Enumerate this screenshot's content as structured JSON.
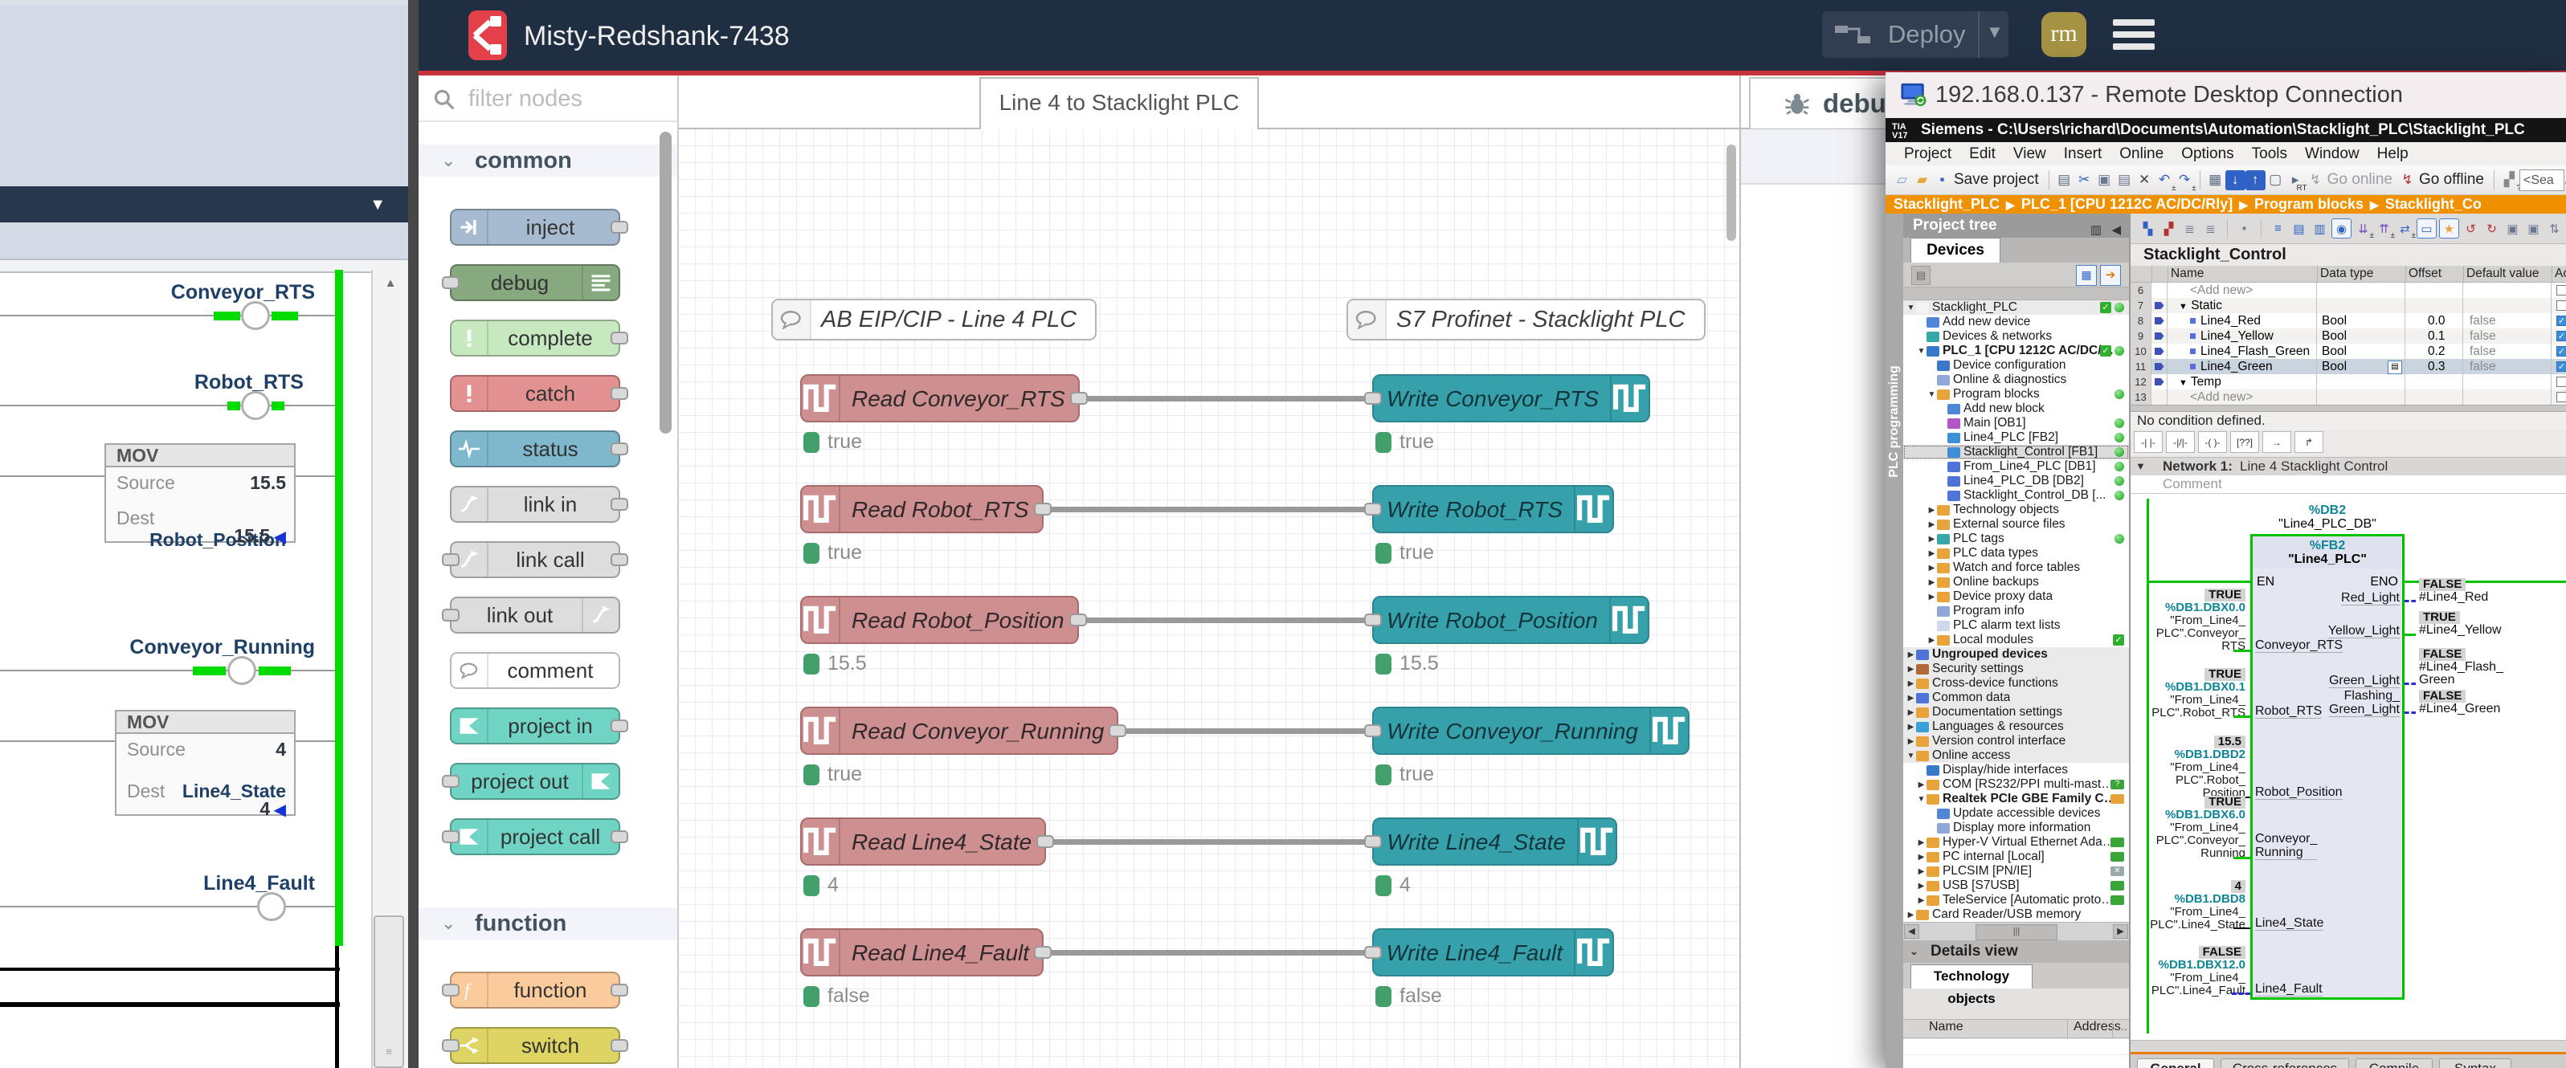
{
  "ladder_app": {
    "window_caret_icon": "▼",
    "rungs": [
      {
        "tag": "Conveyor_RTS",
        "energized": true
      },
      {
        "tag": "Robot_RTS",
        "energized": true
      },
      {
        "tag": "Conveyor_Running",
        "energized": true
      },
      {
        "tag": "Line4_Fault",
        "energized": false
      }
    ],
    "mov_blocks": [
      {
        "title": "MOV",
        "source_label": "Source",
        "source_value": "15.5",
        "dest_label": "Dest",
        "dest_tag": "Robot_Position",
        "dest_value": "15.5"
      },
      {
        "title": "MOV",
        "source_label": "Source",
        "source_value": "4",
        "dest_label": "Dest",
        "dest_tag": "Line4_State",
        "dest_value": "4"
      }
    ]
  },
  "node_red": {
    "title": "Misty-Redshank-7438",
    "deploy_label": "Deploy",
    "avatar_initials": "rm",
    "tab_label": "Line 4 to Stacklight PLC",
    "sidebar_tab": "debug",
    "palette": {
      "filter_placeholder": "filter nodes",
      "sections": [
        {
          "label": "common",
          "nodes": [
            {
              "label": "inject",
              "color": "#a6bbcf",
              "icon": "inject-icon",
              "icon_side": "left",
              "ports": "out"
            },
            {
              "label": "debug",
              "color": "#87a980",
              "icon": "debug-icon",
              "icon_side": "right",
              "ports": "in"
            },
            {
              "label": "complete",
              "color": "#c7e9c0",
              "icon": "exclaim-icon",
              "icon_side": "left",
              "ports": "out"
            },
            {
              "label": "catch",
              "color": "#e49191",
              "icon": "exclaim-icon",
              "icon_side": "left",
              "ports": "out"
            },
            {
              "label": "status",
              "color": "#7fb7cc",
              "icon": "status-icon",
              "icon_side": "left",
              "ports": "out"
            },
            {
              "label": "link in",
              "color": "#dddddd",
              "icon": "link-icon",
              "icon_side": "left",
              "ports": "out"
            },
            {
              "label": "link call",
              "color": "#dddddd",
              "icon": "link-icon",
              "icon_side": "left",
              "ports": "both"
            },
            {
              "label": "link out",
              "color": "#dddddd",
              "icon": "link-icon",
              "icon_side": "right",
              "ports": "in"
            },
            {
              "label": "comment",
              "color": "#ffffff",
              "icon": "comment-icon",
              "icon_side": "left",
              "ports": "none"
            },
            {
              "label": "project in",
              "color": "#6fd4c4",
              "icon": "project-icon",
              "icon_side": "left",
              "ports": "out"
            },
            {
              "label": "project out",
              "color": "#6fd4c4",
              "icon": "project-icon",
              "icon_side": "right",
              "ports": "in"
            },
            {
              "label": "project call",
              "color": "#6fd4c4",
              "icon": "project-icon",
              "icon_side": "left",
              "ports": "both"
            }
          ]
        },
        {
          "label": "function",
          "nodes": [
            {
              "label": "function",
              "color": "#fbcb9c",
              "icon": "function-icon",
              "icon_side": "left",
              "ports": "both"
            },
            {
              "label": "switch",
              "color": "#ddd463",
              "icon": "switch-icon",
              "icon_side": "left",
              "ports": "both"
            },
            {
              "label": "",
              "color": "#ddd463",
              "icon": "",
              "icon_side": "left",
              "ports": "none",
              "partial": true
            }
          ]
        }
      ]
    },
    "comments": [
      "AB EIP/CIP - Line 4 PLC",
      "S7 Profinet - Stacklight PLC"
    ],
    "flows": [
      {
        "read": "Read Conveyor_RTS",
        "write": "Write Conveyor_RTS",
        "read_status": "true",
        "write_status": "true"
      },
      {
        "read": "Read Robot_RTS",
        "write": "Write Robot_RTS",
        "read_status": "true",
        "write_status": "true"
      },
      {
        "read": "Read Robot_Position",
        "write": "Write Robot_Position",
        "read_status": "15.5",
        "write_status": "15.5"
      },
      {
        "read": "Read Conveyor_Running",
        "write": "Write Conveyor_Running",
        "read_status": "true",
        "write_status": "true"
      },
      {
        "read": "Read Line4_State",
        "write": "Write Line4_State",
        "read_status": "4",
        "write_status": "4"
      },
      {
        "read": "Read Line4_Fault",
        "write": "Write Line4_Fault",
        "read_status": "false",
        "write_status": "false"
      }
    ]
  },
  "rdp": {
    "window_title": "192.168.0.137 - Remote Desktop Connection",
    "tia": {
      "logo_line1": "TIA",
      "logo_line2": "V17",
      "titlebar": "Siemens  -  C:\\Users\\richard\\Documents\\Automation\\Stacklight_PLC\\Stacklight_PLC",
      "menus": [
        "Project",
        "Edit",
        "View",
        "Insert",
        "Online",
        "Options",
        "Tools",
        "Window",
        "Help"
      ],
      "toolbar": [
        {
          "n": "new-project-icon",
          "g": "▱",
          "c": "#7a9fd4"
        },
        {
          "n": "open-project-icon",
          "g": "▰",
          "c": "#e2a93b"
        },
        {
          "n": "save-project-icon",
          "g": "▪",
          "c": "#2f62c4",
          "label": "Save project",
          "label_color": "#222"
        },
        {
          "n": "sep"
        },
        {
          "n": "print-icon",
          "g": "▤",
          "c": "#5d6a85"
        },
        {
          "n": "cut-icon",
          "g": "✂",
          "c": "#2f62c4"
        },
        {
          "n": "copy-icon",
          "g": "▣",
          "c": "#6b7690"
        },
        {
          "n": "paste-icon",
          "g": "▤",
          "c": "#6b7690"
        },
        {
          "n": "delete-icon",
          "g": "✕",
          "c": "#444444"
        },
        {
          "n": "undo-icon",
          "g": "↶",
          "c": "#2f62c4",
          "sub": "±"
        },
        {
          "n": "redo-icon",
          "g": "↷",
          "c": "#2f62c4",
          "sub": "±"
        },
        {
          "n": "sep"
        },
        {
          "n": "show-network-icon",
          "g": "▦",
          "c": "#5d6a85"
        },
        {
          "n": "download-to-device-icon",
          "g": "↓",
          "c": "#ffffff",
          "bg": "#2f62c4"
        },
        {
          "n": "upload-from-device-icon",
          "g": "↑",
          "c": "#ffffff",
          "bg": "#2f62c4"
        },
        {
          "n": "monitor-icon",
          "g": "▢",
          "c": "#5d6a85"
        },
        {
          "n": "start-rt-icon",
          "g": "▸",
          "c": "#5d6a85",
          "sub": "RT"
        },
        {
          "n": "go-online-icon",
          "g": "↯",
          "c": "#9aa0a8",
          "label": "Go online",
          "label_color": "#9aa0a8"
        },
        {
          "n": "go-offline-icon",
          "g": "↯",
          "c": "#b3342f",
          "label": "Go offline",
          "label_color": "#222"
        },
        {
          "n": "sep"
        },
        {
          "n": "accessible-devices-icon",
          "g": "▞",
          "c": "#888888",
          "sub": "?"
        },
        {
          "n": "start-cpu-icon",
          "g": "▶",
          "c": "#6b7690"
        },
        {
          "n": "stop-cpu-icon",
          "g": "■",
          "c": "#b3342f"
        },
        {
          "n": "cross-ref-icon",
          "g": "✗",
          "c": "#333333"
        },
        {
          "n": "h-split-icon",
          "g": "▬",
          "c": "#2f62c4"
        },
        {
          "n": "v-split-icon",
          "g": "▮",
          "c": "#2f62c4"
        }
      ],
      "toolbar_search": "<Sea",
      "breadcrumb": [
        "Stacklight_PLC",
        "PLC_1 [CPU 1212C AC/DC/Rly]",
        "Program blocks",
        "Stacklight_Co"
      ],
      "side_strip": "PLC programming",
      "project_tree": {
        "header": "Project tree",
        "tab": "Devices",
        "rows": [
          {
            "l": "Stacklight_PLC",
            "lv": 0,
            "e": 2,
            "ic": "project",
            "r": "cd",
            "sh": 1
          },
          {
            "l": "Add new device",
            "lv": 1,
            "ic": "add"
          },
          {
            "l": "Devices & networks",
            "lv": 1,
            "ic": "network"
          },
          {
            "l": "PLC_1 [CPU 1212C AC/DC/Rly]",
            "lv": 1,
            "e": 2,
            "ic": "plc",
            "r": "cd",
            "b": 1
          },
          {
            "l": "Device configuration",
            "lv": 2,
            "ic": "devconf"
          },
          {
            "l": "Online & diagnostics",
            "lv": 2,
            "ic": "diag"
          },
          {
            "l": "Program blocks",
            "lv": 2,
            "e": 2,
            "ic": "folder",
            "r": "d"
          },
          {
            "l": "Add new block",
            "lv": 3,
            "ic": "add"
          },
          {
            "l": "Main [OB1]",
            "lv": 3,
            "ic": "ob",
            "r": "d"
          },
          {
            "l": "Line4_PLC [FB2]",
            "lv": 3,
            "ic": "fb",
            "r": "d"
          },
          {
            "l": "Stacklight_Control [FB1]",
            "lv": 3,
            "ic": "fb",
            "r": "d",
            "sel": 1
          },
          {
            "l": "From_Line4_PLC [DB1]",
            "lv": 3,
            "ic": "db",
            "r": "d"
          },
          {
            "l": "Line4_PLC_DB [DB2]",
            "lv": 3,
            "ic": "db",
            "r": "d"
          },
          {
            "l": "Stacklight_Control_DB [...",
            "lv": 3,
            "ic": "db",
            "r": "d"
          },
          {
            "l": "Technology objects",
            "lv": 2,
            "e": 1,
            "ic": "folder"
          },
          {
            "l": "External source files",
            "lv": 2,
            "e": 1,
            "ic": "folder"
          },
          {
            "l": "PLC tags",
            "lv": 2,
            "e": 1,
            "ic": "tags",
            "r": "d"
          },
          {
            "l": "PLC data types",
            "lv": 2,
            "e": 1,
            "ic": "types"
          },
          {
            "l": "Watch and force tables",
            "lv": 2,
            "e": 1,
            "ic": "watch"
          },
          {
            "l": "Online backups",
            "lv": 2,
            "e": 1,
            "ic": "backup"
          },
          {
            "l": "Device proxy data",
            "lv": 2,
            "e": 1,
            "ic": "proxy"
          },
          {
            "l": "Program info",
            "lv": 2,
            "ic": "info"
          },
          {
            "l": "PLC alarm text lists",
            "lv": 2,
            "ic": "alarm"
          },
          {
            "l": "Local modules",
            "lv": 2,
            "e": 1,
            "ic": "modules",
            "r": "c"
          },
          {
            "l": "Ungrouped devices",
            "lv": 0,
            "e": 1,
            "ic": "ungrouped",
            "b": 1,
            "sh": 1
          },
          {
            "l": "Security settings",
            "lv": 0,
            "e": 1,
            "ic": "security",
            "sh": 1
          },
          {
            "l": "Cross-device functions",
            "lv": 0,
            "e": 1,
            "ic": "crossdev",
            "sh": 1
          },
          {
            "l": "Common data",
            "lv": 0,
            "e": 1,
            "ic": "common",
            "sh": 1
          },
          {
            "l": "Documentation settings",
            "lv": 0,
            "e": 1,
            "ic": "docs",
            "sh": 1
          },
          {
            "l": "Languages & resources",
            "lv": 0,
            "e": 1,
            "ic": "lang",
            "sh": 1
          },
          {
            "l": "Version control interface",
            "lv": 0,
            "e": 1,
            "ic": "version",
            "sh": 1
          },
          {
            "l": "Online access",
            "lv": 0,
            "e": 2,
            "ic": "online",
            "sh": 1
          },
          {
            "l": "Display/hide interfaces",
            "lv": 1,
            "ic": "iface"
          },
          {
            "l": "COM [RS232/PPI multi-master c...",
            "lv": 1,
            "e": 1,
            "ic": "com",
            "r": "nq"
          },
          {
            "l": "Realtek PCIe GBE Family Con...",
            "lv": 1,
            "e": 2,
            "ic": "com",
            "b": 1,
            "r": "no"
          },
          {
            "l": "Update accessible devices",
            "lv": 2,
            "ic": "update"
          },
          {
            "l": "Display more information",
            "lv": 2,
            "ic": "displaymore"
          },
          {
            "l": "Hyper-V Virtual Ethernet Adapter",
            "lv": 1,
            "e": 1,
            "ic": "com",
            "r": "ng"
          },
          {
            "l": "PC internal [Local]",
            "lv": 1,
            "e": 1,
            "ic": "com",
            "r": "ng"
          },
          {
            "l": "PLCSIM [PN/IE]",
            "lv": 1,
            "e": 1,
            "ic": "com",
            "r": "nx"
          },
          {
            "l": "USB [S7USB]",
            "lv": 1,
            "e": 1,
            "ic": "com",
            "r": "ng"
          },
          {
            "l": "TeleService [Automatic protoco...",
            "lv": 1,
            "e": 1,
            "ic": "com",
            "r": "ng"
          },
          {
            "l": "Card Reader/USB memory",
            "lv": 0,
            "e": 1,
            "ic": "card"
          }
        ],
        "details_header": "Details view",
        "details_tab": "Technology objects",
        "details_columns": [
          "Name",
          "Address",
          "..."
        ]
      },
      "tag_table": {
        "title": "Stacklight_Control",
        "columns": [
          "Name",
          "Data type",
          "Offset",
          "Default value",
          "Accessible"
        ],
        "rows": [
          {
            "num": "6",
            "name": "<Add new>",
            "kind": "add"
          },
          {
            "num": "7",
            "name": "Static",
            "kind": "group"
          },
          {
            "num": "8",
            "name": "Line4_Red",
            "type": "Bool",
            "offset": "0.0",
            "default": "false",
            "check": true
          },
          {
            "num": "9",
            "name": "Line4_Yellow",
            "type": "Bool",
            "offset": "0.1",
            "default": "false",
            "check": true
          },
          {
            "num": "10",
            "name": "Line4_Flash_Green",
            "type": "Bool",
            "offset": "0.2",
            "default": "false",
            "check": true
          },
          {
            "num": "11",
            "name": "Line4_Green",
            "type": "Bool",
            "offset": "0.3",
            "default": "false",
            "check": true,
            "selected": true
          },
          {
            "num": "12",
            "name": "Temp",
            "kind": "group"
          },
          {
            "num": "13",
            "name": "<Add new>",
            "kind": "add"
          }
        ]
      },
      "network": {
        "no_condition": "No condition defined.",
        "lad_buttons": [
          "-| |-",
          "-|/|-",
          "-( )-",
          "[??]",
          "→",
          "↱"
        ],
        "label": "Network 1:",
        "title": "Line 4 Stacklight Control",
        "comment": "Comment",
        "db_addr": "%DB2",
        "db_name": "\"Line4_PLC_DB\"",
        "fb_addr": "%FB2",
        "fb_name": "\"Line4_PLC\"",
        "en": "EN",
        "eno": "ENO",
        "inputs": [
          {
            "value": "TRUE",
            "addr": "%DB1.DBX0.0",
            "operand": "\"From_Line4_\nPLC\".Conveyor_\nRTS",
            "port": "Conveyor_RTS",
            "wire": "green"
          },
          {
            "value": "TRUE",
            "addr": "%DB1.DBX0.1",
            "operand": "\"From_Line4_\nPLC\".Robot_RTS",
            "port": "Robot_RTS",
            "wire": "green"
          },
          {
            "value": "15.5",
            "addr": "%DB1.DBD2",
            "operand": "\"From_Line4_\nPLC\".Robot_\nPosition",
            "port": "Robot_Position",
            "wire": "black"
          },
          {
            "value": "TRUE",
            "addr": "%DB1.DBX6.0",
            "operand": "\"From_Line4_\nPLC\".Conveyor_\nRunning",
            "port": "Conveyor_\nRunning",
            "wire": "green"
          },
          {
            "value": "4",
            "addr": "%DB1.DBD8",
            "operand": "\"From_Line4_\nPLC\".Line4_State",
            "port": "Line4_State",
            "wire": "black"
          },
          {
            "value": "FALSE",
            "addr": "%DB1.DBX12.0",
            "operand": "\"From_Line4_\nPLC\".Line4_Fault",
            "port": "Line4_Fault",
            "wire": "blue"
          }
        ],
        "outputs": [
          {
            "port": "Red_Light",
            "value": "FALSE",
            "var": "#Line4_Red",
            "wire": "blue"
          },
          {
            "port": "Yellow_Light",
            "value": "TRUE",
            "var": "#Line4_Yellow",
            "wire": "green"
          },
          {
            "port": "Green_Light",
            "value": "FALSE",
            "var": "#Line4_Flash_\nGreen",
            "wire": "blue"
          },
          {
            "port": "Flashing_\nGreen_Light",
            "value": "FALSE",
            "var": "#Line4_Green",
            "wire": "blue"
          }
        ]
      },
      "bottom_tabs": [
        "General",
        "Cross-references",
        "Compile",
        "Syntax"
      ]
    }
  }
}
